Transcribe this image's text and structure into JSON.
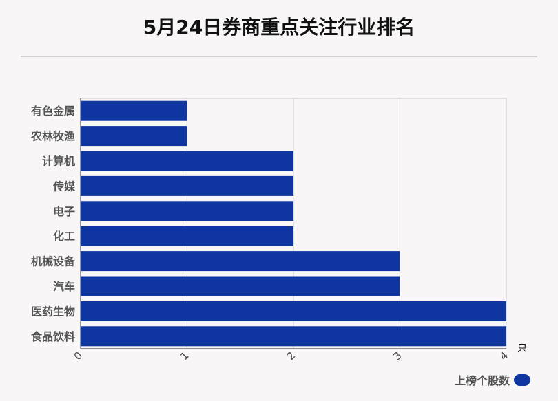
{
  "chart_data": {
    "type": "bar",
    "orientation": "horizontal",
    "title": "5月24日券商重点关注行业排名",
    "categories": [
      "有色金属",
      "农林牧渔",
      "计算机",
      "传媒",
      "电子",
      "化工",
      "机械设备",
      "汽车",
      "医药生物",
      "食品饮料"
    ],
    "series": [
      {
        "name": "上榜个股数",
        "values": [
          1,
          1,
          2,
          2,
          2,
          2,
          3,
          3,
          4,
          4
        ]
      }
    ],
    "xlim": [
      0,
      4
    ],
    "x_ticks": [
      "0",
      "1",
      "2",
      "3",
      "4"
    ],
    "x_unit": "只",
    "grid": true,
    "legend_position": "bottom-right",
    "bar_color": "#0f35a0"
  }
}
